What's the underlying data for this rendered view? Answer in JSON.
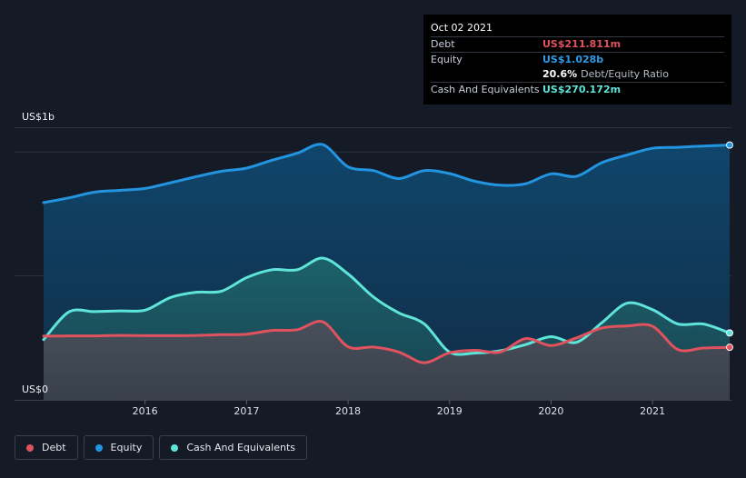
{
  "tooltip": {
    "date": "Oct 02 2021",
    "debt_label": "Debt",
    "debt_value": "US$211.811m",
    "equity_label": "Equity",
    "equity_value": "US$1.028b",
    "ratio_value": "20.6%",
    "ratio_label": "Debt/Equity Ratio",
    "cash_label": "Cash And Equivalents",
    "cash_value": "US$270.172m"
  },
  "legend": {
    "debt": "Debt",
    "equity": "Equity",
    "cash": "Cash And Equivalents"
  },
  "colors": {
    "background": "#151b26",
    "debt": "#e0525d",
    "equity": "#2394df",
    "cash": "#5ee4d8"
  },
  "chart_data": {
    "type": "area",
    "y_top_label": "US$1b",
    "y_bottom_label": "US$0",
    "ylim": [
      0,
      1100
    ],
    "xlim": [
      2015.0,
      2021.76
    ],
    "xticks": [
      "2016",
      "2017",
      "2018",
      "2019",
      "2020",
      "2021"
    ],
    "grid": true,
    "legend_position": "bottom-left",
    "series": [
      {
        "name": "Equity",
        "x": [
          2015.0,
          2015.25,
          2015.5,
          2015.75,
          2016.0,
          2016.25,
          2016.5,
          2016.75,
          2017.0,
          2017.25,
          2017.5,
          2017.75,
          2018.0,
          2018.25,
          2018.5,
          2018.75,
          2019.0,
          2019.25,
          2019.5,
          2019.75,
          2020.0,
          2020.25,
          2020.5,
          2020.75,
          2021.0,
          2021.25,
          2021.5,
          2021.76
        ],
        "values": [
          796,
          815,
          838,
          845,
          853,
          876,
          900,
          922,
          935,
          967,
          995,
          1030,
          940,
          925,
          893,
          925,
          913,
          882,
          866,
          872,
          912,
          902,
          957,
          988,
          1015,
          1019,
          1024,
          1028
        ]
      },
      {
        "name": "Cash And Equivalents",
        "x": [
          2015.0,
          2015.25,
          2015.5,
          2015.75,
          2016.0,
          2016.25,
          2016.5,
          2016.75,
          2017.0,
          2017.25,
          2017.5,
          2017.75,
          2018.0,
          2018.25,
          2018.5,
          2018.75,
          2019.0,
          2019.25,
          2019.5,
          2019.75,
          2020.0,
          2020.25,
          2020.5,
          2020.75,
          2021.0,
          2021.25,
          2021.5,
          2021.76
        ],
        "values": [
          243,
          355,
          356,
          359,
          362,
          413,
          434,
          438,
          493,
          525,
          525,
          572,
          508,
          415,
          351,
          307,
          193,
          189,
          198,
          223,
          255,
          232,
          311,
          390,
          364,
          306,
          306,
          270
        ]
      },
      {
        "name": "Debt",
        "x": [
          2015.0,
          2015.25,
          2015.5,
          2015.75,
          2016.0,
          2016.25,
          2016.5,
          2016.75,
          2017.0,
          2017.25,
          2017.5,
          2017.75,
          2018.0,
          2018.25,
          2018.5,
          2018.75,
          2019.0,
          2019.25,
          2019.5,
          2019.75,
          2020.0,
          2020.25,
          2020.5,
          2020.75,
          2021.0,
          2021.25,
          2021.5,
          2021.76
        ],
        "values": [
          257,
          258,
          258,
          260,
          259,
          259,
          260,
          263,
          265,
          280,
          283,
          315,
          214,
          213,
          193,
          150,
          190,
          200,
          193,
          247,
          219,
          250,
          290,
          298,
          297,
          203,
          209,
          212
        ]
      }
    ]
  }
}
